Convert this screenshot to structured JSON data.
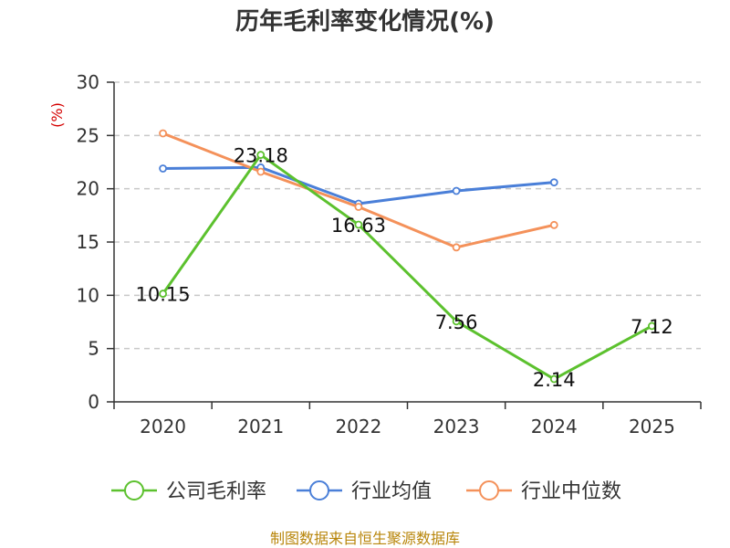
{
  "chart_data": {
    "type": "line",
    "title": "历年毛利率变化情况(%)",
    "ylabel": "(%)",
    "xlabel": "",
    "categories": [
      "2020",
      "2021",
      "2022",
      "2023",
      "2024",
      "2025"
    ],
    "ylim": [
      0,
      30
    ],
    "yticks": [
      0,
      5,
      10,
      15,
      20,
      25,
      30
    ],
    "grid": true,
    "legend_position": "bottom",
    "series": [
      {
        "name": "公司毛利率",
        "color": "#5cc12e",
        "values": [
          10.15,
          23.18,
          16.63,
          7.56,
          2.14,
          7.12
        ],
        "labels": [
          "10.15",
          "23.18",
          "16.63",
          "7.56",
          "2.14",
          "7.12"
        ]
      },
      {
        "name": "行业均值",
        "color": "#4a7fd8",
        "values": [
          21.9,
          22.0,
          18.6,
          19.8,
          20.6,
          null
        ]
      },
      {
        "name": "行业中位数",
        "color": "#f4915a",
        "values": [
          25.2,
          21.6,
          18.3,
          14.5,
          16.6,
          null
        ]
      }
    ]
  },
  "source": "制图数据来自恒生聚源数据库"
}
